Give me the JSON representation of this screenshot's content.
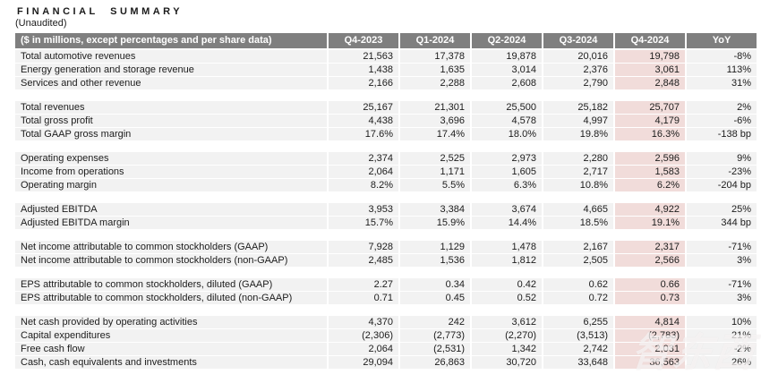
{
  "title": "FINANCIAL SUMMARY",
  "subtitle": "(Unaudited)",
  "watermark": "智东西",
  "colors": {
    "header_bg": "#7f7f7f",
    "header_text": "#ffffff",
    "row_bg": "#f2f2f2",
    "highlight_bg": "#f1dcda",
    "text": "#1c1c1c"
  },
  "table": {
    "label_header": "($ in millions, except percentages and per share data)",
    "columns": [
      "Q4-2023",
      "Q1-2024",
      "Q2-2024",
      "Q3-2024",
      "Q4-2024",
      "YoY"
    ],
    "highlight_column": "Q4-2024",
    "highlight_column_index": 4,
    "sections": [
      {
        "rows": [
          {
            "label": "Total automotive revenues",
            "values": [
              "21,563",
              "17,378",
              "19,878",
              "20,016",
              "19,798",
              "-8%"
            ]
          },
          {
            "label": "Energy generation and storage revenue",
            "values": [
              "1,438",
              "1,635",
              "3,014",
              "2,376",
              "3,061",
              "113%"
            ]
          },
          {
            "label": "Services and other revenue",
            "values": [
              "2,166",
              "2,288",
              "2,608",
              "2,790",
              "2,848",
              "31%"
            ]
          }
        ]
      },
      {
        "rows": [
          {
            "label": "Total revenues",
            "values": [
              "25,167",
              "21,301",
              "25,500",
              "25,182",
              "25,707",
              "2%"
            ]
          },
          {
            "label": "Total gross profit",
            "values": [
              "4,438",
              "3,696",
              "4,578",
              "4,997",
              "4,179",
              "-6%"
            ]
          },
          {
            "label": "Total GAAP gross margin",
            "values": [
              "17.6%",
              "17.4%",
              "18.0%",
              "19.8%",
              "16.3%",
              "-138 bp"
            ]
          }
        ]
      },
      {
        "rows": [
          {
            "label": "Operating expenses",
            "values": [
              "2,374",
              "2,525",
              "2,973",
              "2,280",
              "2,596",
              "9%"
            ]
          },
          {
            "label": "Income from operations",
            "values": [
              "2,064",
              "1,171",
              "1,605",
              "2,717",
              "1,583",
              "-23%"
            ]
          },
          {
            "label": "Operating margin",
            "values": [
              "8.2%",
              "5.5%",
              "6.3%",
              "10.8%",
              "6.2%",
              "-204 bp"
            ]
          }
        ]
      },
      {
        "rows": [
          {
            "label": "Adjusted EBITDA",
            "values": [
              "3,953",
              "3,384",
              "3,674",
              "4,665",
              "4,922",
              "25%"
            ]
          },
          {
            "label": "Adjusted EBITDA margin",
            "values": [
              "15.7%",
              "15.9%",
              "14.4%",
              "18.5%",
              "19.1%",
              "344 bp"
            ]
          }
        ]
      },
      {
        "rows": [
          {
            "label": "Net income attributable to common stockholders (GAAP)",
            "values": [
              "7,928",
              "1,129",
              "1,478",
              "2,167",
              "2,317",
              "-71%"
            ]
          },
          {
            "label": "Net income attributable to common stockholders (non-GAAP)",
            "values": [
              "2,485",
              "1,536",
              "1,812",
              "2,505",
              "2,566",
              "3%"
            ]
          }
        ]
      },
      {
        "rows": [
          {
            "label": "EPS attributable to common stockholders, diluted (GAAP)",
            "values": [
              "2.27",
              "0.34",
              "0.42",
              "0.62",
              "0.66",
              "-71%"
            ]
          },
          {
            "label": "EPS attributable to common stockholders, diluted (non-GAAP)",
            "values": [
              "0.71",
              "0.45",
              "0.52",
              "0.72",
              "0.73",
              "3%"
            ]
          }
        ]
      },
      {
        "rows": [
          {
            "label": "Net cash provided by operating activities",
            "values": [
              "4,370",
              "242",
              "3,612",
              "6,255",
              "4,814",
              "10%"
            ]
          },
          {
            "label": "Capital expenditures",
            "values": [
              "(2,306)",
              "(2,773)",
              "(2,270)",
              "(3,513)",
              "(2,783)",
              "21%"
            ]
          },
          {
            "label": "Free cash flow",
            "values": [
              "2,064",
              "(2,531)",
              "1,342",
              "2,742",
              "2,031",
              "-2%"
            ]
          },
          {
            "label": "Cash, cash equivalents and investments",
            "values": [
              "29,094",
              "26,863",
              "30,720",
              "33,648",
              "36,563",
              "26%"
            ]
          }
        ]
      }
    ]
  }
}
